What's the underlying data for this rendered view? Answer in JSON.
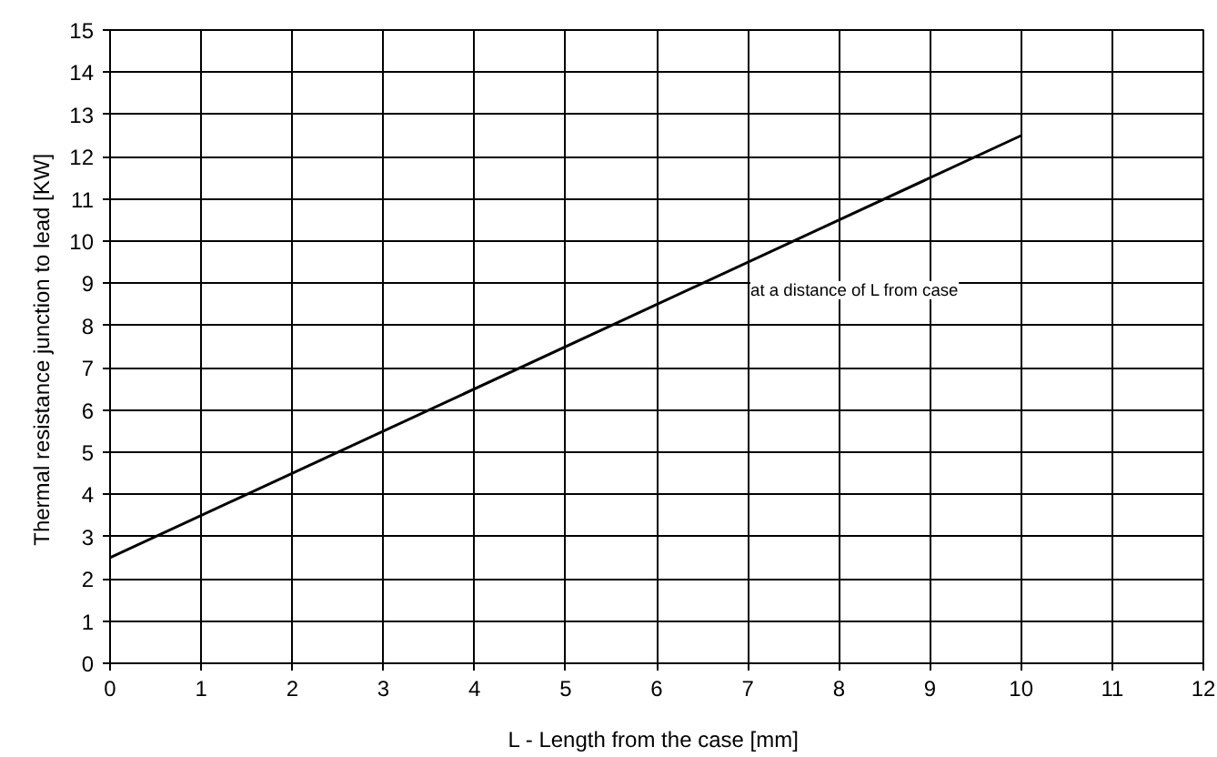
{
  "chart_data": {
    "type": "line",
    "xlabel": "L - Length from the case  [mm]",
    "ylabel": "Thermal resistance junction to lead  [KW]",
    "series": [
      {
        "x": [
          0,
          10
        ],
        "values": [
          2.5,
          12.5
        ],
        "color": "#000000"
      }
    ],
    "annotations": [
      "at a distance of L from case"
    ],
    "xlim": [
      0,
      12
    ],
    "xticks": [
      0,
      1,
      2,
      3,
      4,
      5,
      6,
      7,
      8,
      9,
      10,
      11,
      12
    ],
    "ylim": [
      0,
      15
    ],
    "yticks": [
      0,
      1,
      2,
      3,
      4,
      5,
      6,
      7,
      8,
      9,
      10,
      11,
      12,
      13,
      14,
      15
    ],
    "grid": true,
    "marker": "none",
    "line_style": "solid"
  }
}
